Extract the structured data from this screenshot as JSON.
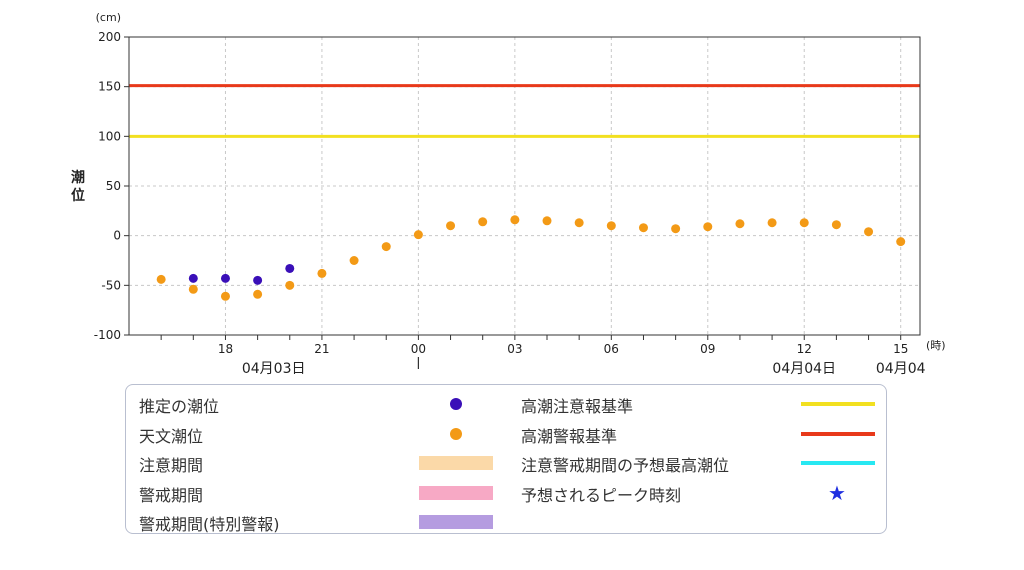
{
  "chart_data": {
    "type": "scatter",
    "yunit": "(cm)",
    "xunit": "(時)",
    "ylabel": "潮位",
    "ylim": [
      -100,
      200
    ],
    "yticks": [
      200,
      150,
      100,
      50,
      0,
      -50,
      -100
    ],
    "xticks": [
      {
        "hour": 18,
        "label": "18"
      },
      {
        "hour": 21,
        "label": "21"
      },
      {
        "hour": 24,
        "label": "00"
      },
      {
        "hour": 27,
        "label": "03"
      },
      {
        "hour": 30,
        "label": "06"
      },
      {
        "hour": 33,
        "label": "09"
      },
      {
        "hour": 36,
        "label": "12"
      },
      {
        "hour": 39,
        "label": "15"
      }
    ],
    "date_labels": [
      {
        "hour": 19.5,
        "label": "04月03日"
      },
      {
        "hour": 36,
        "label": "04月04日"
      },
      {
        "hour": 39,
        "label": "04月04"
      }
    ],
    "thresholds": [
      {
        "name": "高潮警報基準",
        "value": 151,
        "color": "#e8391a"
      },
      {
        "name": "高潮注意報基準",
        "value": 100,
        "color": "#f2e020"
      }
    ],
    "series": [
      {
        "name": "推定の潮位",
        "color": "#3a0fb8",
        "points": [
          [
            17,
            -43
          ],
          [
            18,
            -43
          ],
          [
            19,
            -45
          ],
          [
            20,
            -33
          ]
        ]
      },
      {
        "name": "天文潮位",
        "color": "#f39a16",
        "points": [
          [
            16,
            -44
          ],
          [
            17,
            -54
          ],
          [
            18,
            -61
          ],
          [
            19,
            -59
          ],
          [
            20,
            -50
          ],
          [
            21,
            -38
          ],
          [
            22,
            -25
          ],
          [
            23,
            -11
          ],
          [
            24,
            1
          ],
          [
            25,
            10
          ],
          [
            26,
            14
          ],
          [
            27,
            16
          ],
          [
            28,
            15
          ],
          [
            29,
            13
          ],
          [
            30,
            10
          ],
          [
            31,
            8
          ],
          [
            32,
            7
          ],
          [
            33,
            9
          ],
          [
            34,
            12
          ],
          [
            35,
            13
          ],
          [
            36,
            13
          ],
          [
            37,
            11
          ],
          [
            38,
            4
          ],
          [
            39,
            -6
          ]
        ]
      }
    ]
  },
  "legend": [
    {
      "label": "推定の潮位",
      "symbol": "dot",
      "color": "#3a0fb8"
    },
    {
      "label": "天文潮位",
      "symbol": "dot",
      "color": "#f39a16"
    },
    {
      "label": "注意期間",
      "symbol": "band",
      "color": "#fbd9a8"
    },
    {
      "label": "警戒期間",
      "symbol": "band",
      "color": "#f7a9c5"
    },
    {
      "label": "警戒期間(特別警報)",
      "symbol": "band",
      "color": "#b59ce0"
    },
    {
      "label": "高潮注意報基準",
      "symbol": "line",
      "color": "#f2e020"
    },
    {
      "label": "高潮警報基準",
      "symbol": "line",
      "color": "#e8391a"
    },
    {
      "label": "注意警戒期間の予想最高潮位",
      "symbol": "line",
      "color": "#27e8f2"
    },
    {
      "label": "予想されるピーク時刻",
      "symbol": "star",
      "color": "#1f2fe0",
      "glyph": "★"
    }
  ]
}
